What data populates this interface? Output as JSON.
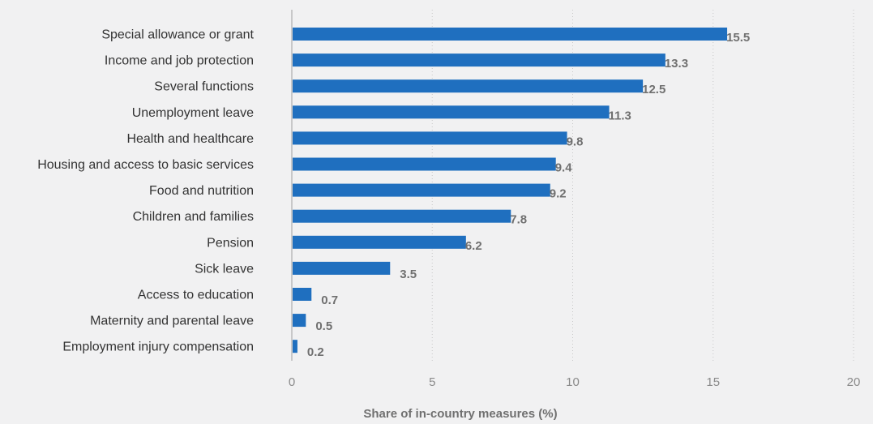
{
  "chart_data": {
    "type": "bar",
    "orientation": "horizontal",
    "categories": [
      "Special allowance or grant",
      "Income and job protection",
      "Several functions",
      "Unemployment leave",
      "Health and healthcare",
      "Housing and access to basic services",
      "Food and nutrition",
      "Children and families",
      "Pension",
      "Sick leave",
      "Access to education",
      "Maternity and parental leave",
      "Employment injury compensation"
    ],
    "values": [
      15.5,
      13.3,
      12.5,
      11.3,
      9.8,
      9.4,
      9.2,
      7.8,
      6.2,
      3.5,
      0.7,
      0.5,
      0.2
    ],
    "value_labels": [
      "15.5",
      "13.3",
      "12.5",
      "11.3",
      "9.8",
      "9.4",
      "9.2",
      "7.8",
      "6.2",
      "3.5",
      "0.7",
      "0.5",
      "0.2"
    ],
    "title": "",
    "xlabel": "Share of in-country measures (%)",
    "ylabel": "",
    "xlim": [
      0,
      20
    ],
    "xticks": [
      "0",
      "5",
      "10",
      "15",
      "20"
    ],
    "grid": "vertical dotted",
    "legend": "none",
    "colors": {
      "bar": "#1f6fbf",
      "background": "#f1f1f2",
      "value_text": "#707070",
      "category_text": "#333333",
      "tick_text": "#8a8a8a",
      "grid": "#c8c8c8",
      "axis": "#a0a0a0"
    }
  }
}
